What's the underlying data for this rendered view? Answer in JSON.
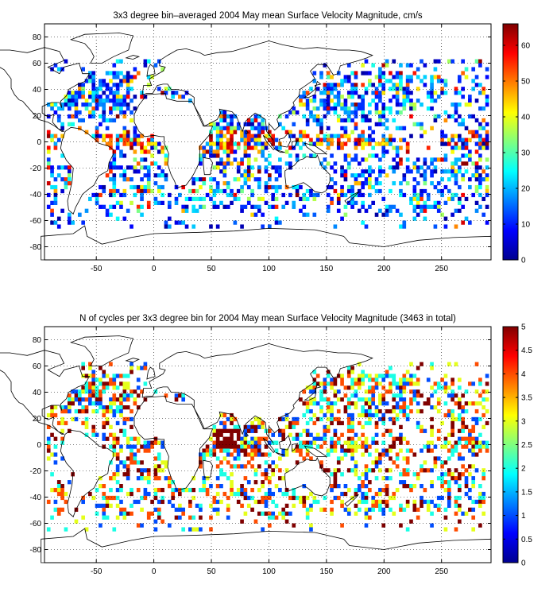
{
  "chart_data": [
    {
      "type": "heatmap",
      "title": "3x3 degree bin–averaged 2004 May mean Surface Velocity Magnitude, cm/s",
      "xlim": [
        -95,
        293
      ],
      "ylim": [
        -90,
        90
      ],
      "xticks": [
        -50,
        0,
        50,
        100,
        150,
        200,
        250
      ],
      "yticks": [
        80,
        60,
        40,
        20,
        0,
        -20,
        -40,
        -60,
        -80
      ],
      "grid": true,
      "bin_size_deg": 3,
      "colorbar": {
        "min": 0,
        "max": 66,
        "ticks": [
          0,
          10,
          20,
          30,
          40,
          50,
          60
        ],
        "colormap": "jet",
        "placement": "right"
      }
    },
    {
      "type": "heatmap",
      "title": "N of cycles per 3x3 degree bin for 2004 May mean Surface Velocity Magnitude (3463 in total)",
      "xlim": [
        -95,
        293
      ],
      "ylim": [
        -90,
        90
      ],
      "xticks": [
        -50,
        0,
        50,
        100,
        150,
        200,
        250
      ],
      "yticks": [
        80,
        60,
        40,
        20,
        0,
        -20,
        -40,
        -60,
        -80
      ],
      "grid": true,
      "bin_size_deg": 3,
      "colorbar": {
        "min": 0,
        "max": 5,
        "ticks": [
          0,
          0.5,
          1,
          1.5,
          2,
          2.5,
          3,
          3.5,
          4,
          4.5,
          5
        ],
        "colormap": "jet",
        "placement": "right"
      }
    }
  ]
}
